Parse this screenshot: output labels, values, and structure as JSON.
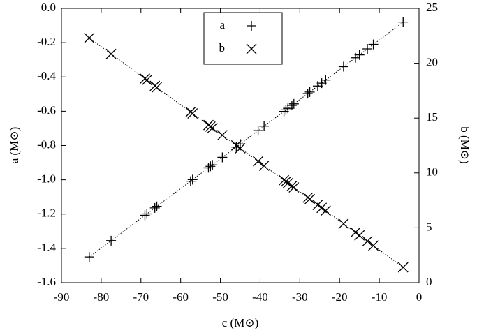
{
  "chart_data": {
    "type": "scatter",
    "xlabel": "c (M⊙)",
    "ylabel": "a (M⊙)",
    "y2label": "b (M⊙)",
    "x": [
      -83,
      -77.5,
      -69,
      -68.5,
      -66.5,
      -66,
      -57.5,
      -57,
      -53,
      -52.5,
      -52,
      -49.5,
      -46,
      -45,
      -40.5,
      -39,
      -34,
      -33.5,
      -33,
      -32,
      -31.5,
      -28,
      -27.5,
      -25.5,
      -24.5,
      -23.5,
      -19,
      -16,
      -15,
      -13,
      -11.5,
      -4
    ],
    "series": [
      {
        "name": "a",
        "color": "#000000",
        "marker": "plus",
        "axis": "y",
        "values": [
          -1.45,
          -1.355,
          -1.207,
          -1.199,
          -1.164,
          -1.155,
          -1.008,
          -0.999,
          -0.93,
          -0.921,
          -0.913,
          -0.869,
          -0.809,
          -0.791,
          -0.713,
          -0.687,
          -0.601,
          -0.592,
          -0.583,
          -0.566,
          -0.557,
          -0.497,
          -0.488,
          -0.453,
          -0.436,
          -0.418,
          -0.34,
          -0.288,
          -0.271,
          -0.236,
          -0.21,
          -0.08
        ]
      },
      {
        "name": "b",
        "color": "#000000",
        "marker": "cross",
        "axis": "y2",
        "values": [
          22.3,
          20.85,
          18.6,
          18.47,
          17.94,
          17.8,
          15.56,
          15.42,
          14.37,
          14.23,
          14.1,
          13.44,
          12.51,
          12.25,
          11.06,
          10.66,
          9.34,
          9.21,
          9.07,
          8.81,
          8.68,
          7.75,
          7.62,
          7.09,
          6.82,
          6.56,
          5.37,
          4.58,
          4.31,
          3.78,
          3.38,
          1.4
        ]
      }
    ],
    "xlim": [
      -90,
      0
    ],
    "xticks": [
      -90,
      -80,
      -70,
      -60,
      -50,
      -40,
      -30,
      -20,
      -10,
      0
    ],
    "ylim": [
      -1.6,
      0
    ],
    "yticks": [
      {
        "value": 0,
        "label": "0.0"
      },
      -0.2,
      -0.4,
      -0.6,
      -0.8,
      {
        "value": -1,
        "label": "-1.0"
      },
      -1.2,
      -1.4,
      -1.6
    ],
    "y2lim": [
      0,
      25
    ],
    "y2ticks": [
      0,
      5,
      10,
      15,
      20,
      25
    ],
    "legend": "top-center",
    "fit_lines": true
  }
}
